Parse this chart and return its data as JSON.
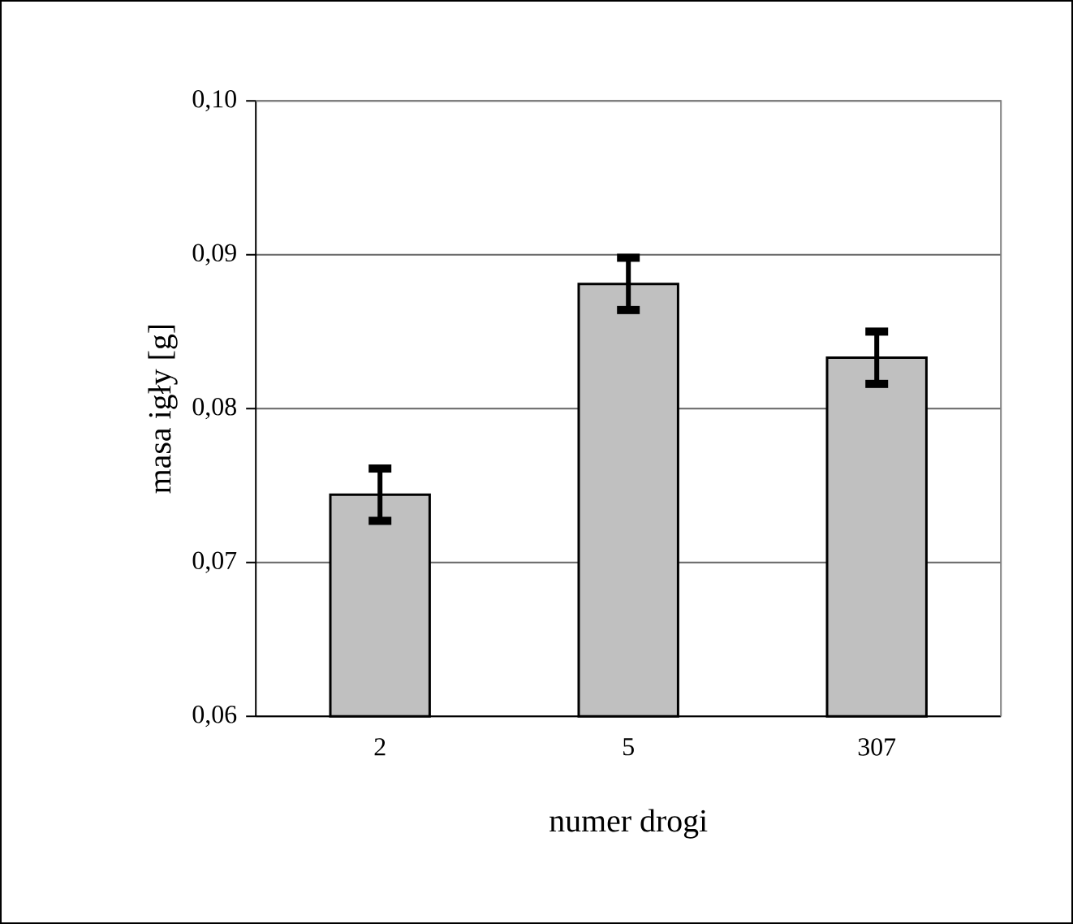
{
  "chart_data": {
    "type": "bar",
    "xlabel": "numer drogi",
    "ylabel": "masa igły [g]",
    "categories": [
      "2",
      "5",
      "307"
    ],
    "values": [
      0.0744,
      0.0881,
      0.0833
    ],
    "errors": [
      0.0017,
      0.0017,
      0.0017
    ],
    "color": "#c0c0c0",
    "ylim": [
      0.06,
      0.1
    ],
    "yticks": [
      {
        "value": 0.06,
        "label": "0,06"
      },
      {
        "value": 0.07,
        "label": "0,07"
      },
      {
        "value": 0.08,
        "label": "0,08"
      },
      {
        "value": 0.09,
        "label": "0,09"
      },
      {
        "value": 0.1,
        "label": "0,10"
      }
    ],
    "grid": "y"
  }
}
